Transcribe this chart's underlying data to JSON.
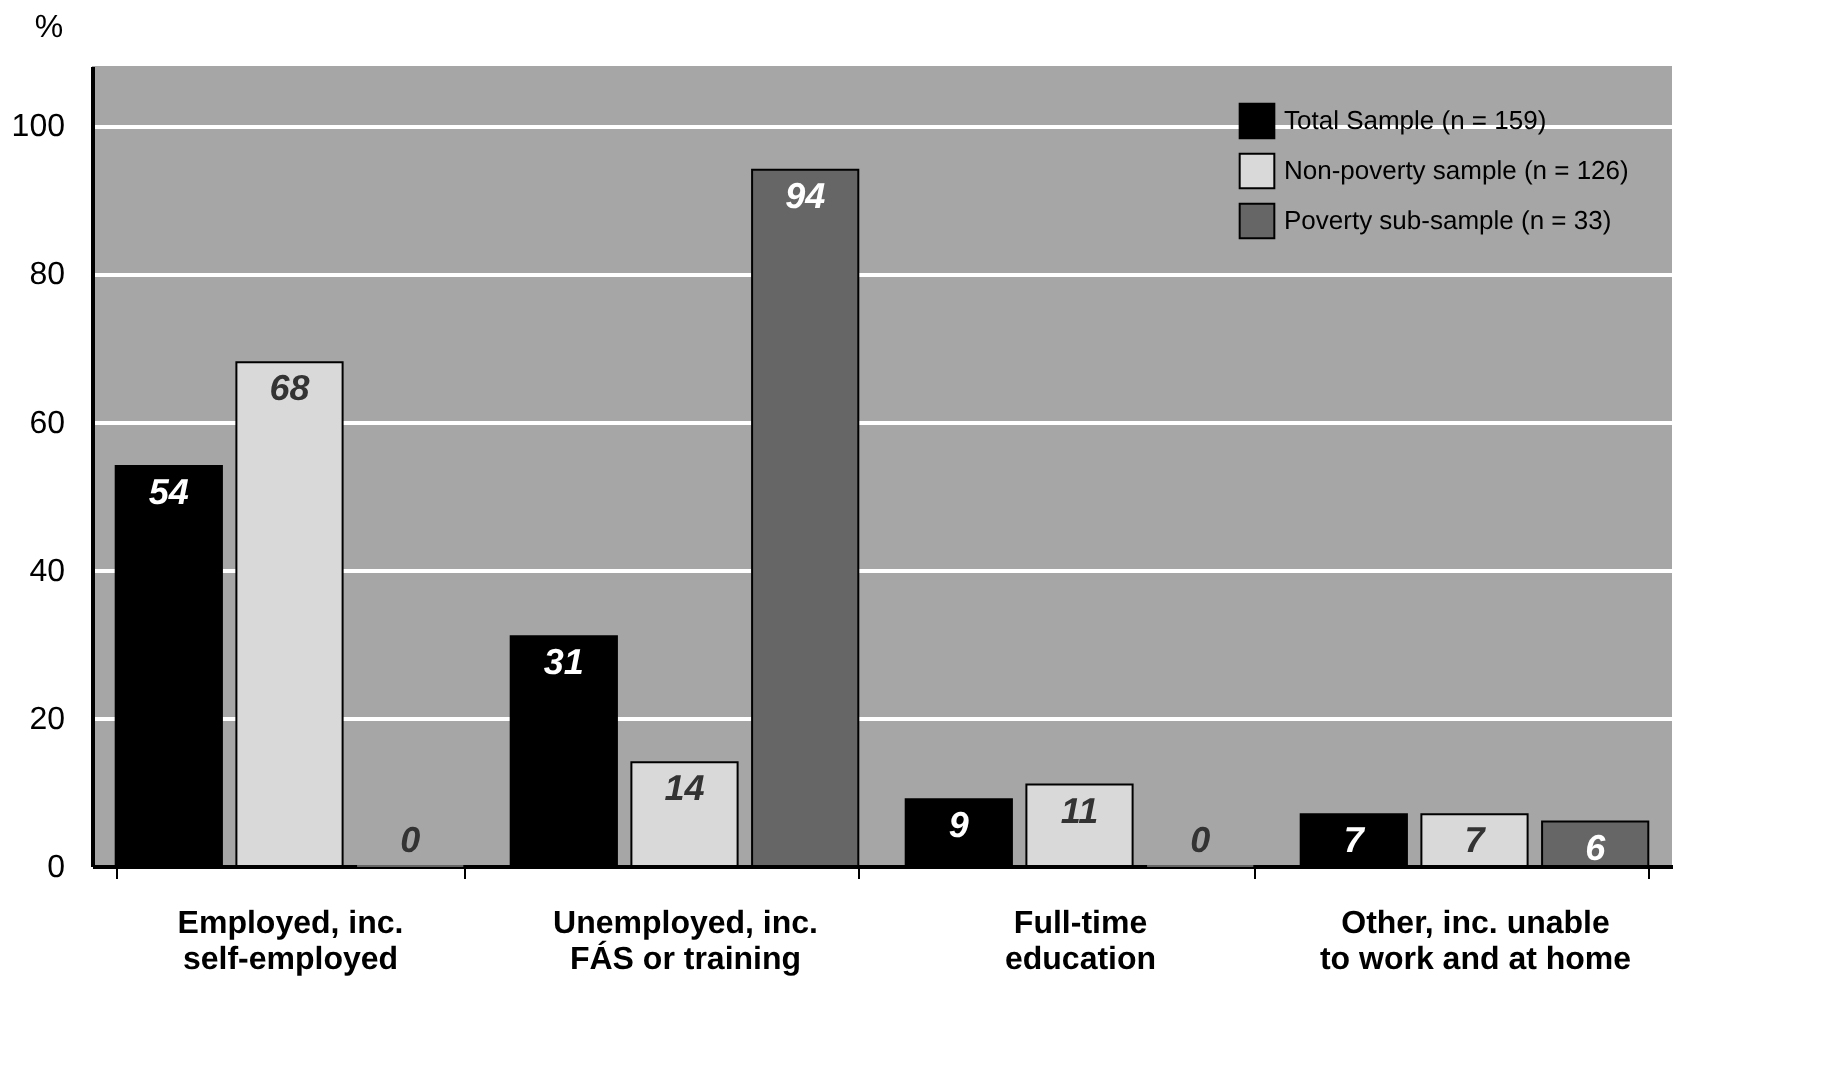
{
  "chart_data": {
    "type": "bar",
    "ylabel": "%",
    "categories": [
      "Employed, inc.\nself-employed",
      "Unemployed, inc.\nFÁS or training",
      "Full-time\neducation",
      "Other, inc. unable\nto work and at home"
    ],
    "series": [
      {
        "name": "Total Sample (n = 159)",
        "color": "#000000",
        "values": [
          54,
          31,
          9,
          7
        ]
      },
      {
        "name": "Non-poverty sample  (n = 126)",
        "color": "#d9d9d9",
        "values": [
          68,
          14,
          11,
          7
        ]
      },
      {
        "name": "Poverty sub-sample  (n = 33)",
        "color": "#666666",
        "values": [
          0,
          94,
          0,
          6
        ]
      }
    ],
    "ylim": [
      0,
      108
    ],
    "yticks": [
      0,
      20,
      40,
      60,
      80,
      100
    ],
    "grid": "y",
    "legend": "top right",
    "data_labels": true
  }
}
